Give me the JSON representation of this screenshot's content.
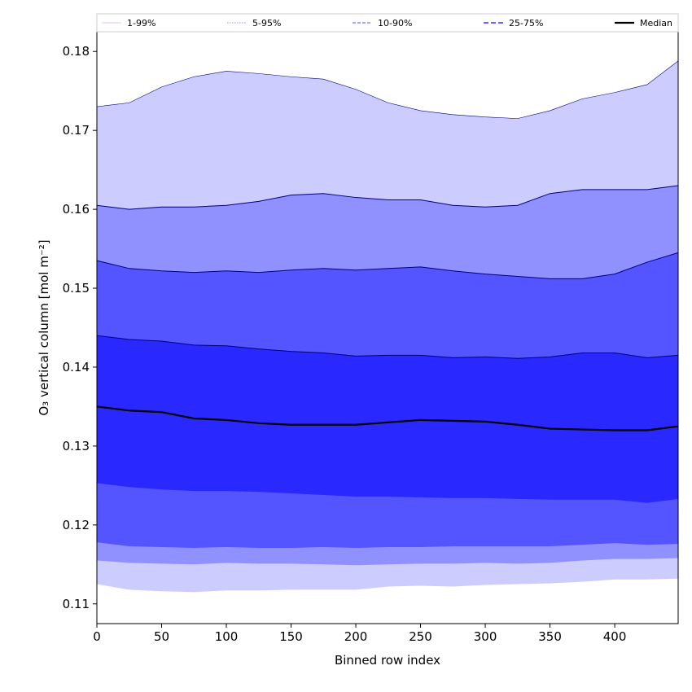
{
  "chart_data": {
    "type": "area",
    "title": "",
    "xlabel": "Binned row index",
    "ylabel": "O₃ vertical column [mol m⁻²]",
    "xlim": [
      0,
      449
    ],
    "ylim": [
      0.1075,
      0.1825
    ],
    "xticks": [
      0,
      50,
      100,
      150,
      200,
      250,
      300,
      350,
      400
    ],
    "yticks": [
      0.11,
      0.12,
      0.13,
      0.14,
      0.15,
      0.16,
      0.17,
      0.18
    ],
    "ytick_labels": [
      "0.11",
      "0.12",
      "0.13",
      "0.14",
      "0.15",
      "0.16",
      "0.17",
      "0.18"
    ],
    "grid": false,
    "legend_position": "top",
    "colors": {
      "band_1_99": "#ccccff",
      "band_5_95": "#9090ff",
      "band_10_90": "#5555ff",
      "band_25_75": "#2828ff",
      "median": "#000000",
      "upper_edge": "#000080"
    },
    "x": [
      0,
      25,
      50,
      75,
      100,
      125,
      150,
      175,
      200,
      225,
      250,
      275,
      300,
      325,
      350,
      375,
      400,
      425,
      449
    ],
    "bands": [
      {
        "name": "1-99%",
        "lower": [
          0.1125,
          0.1118,
          0.1116,
          0.1115,
          0.1117,
          0.1117,
          0.1118,
          0.1118,
          0.1118,
          0.1122,
          0.1123,
          0.1122,
          0.1124,
          0.1125,
          0.1126,
          0.1128,
          0.1131,
          0.1131,
          0.1132
        ],
        "upper": [
          0.173,
          0.1735,
          0.1755,
          0.1768,
          0.1775,
          0.1772,
          0.1768,
          0.1765,
          0.1752,
          0.1735,
          0.1725,
          0.172,
          0.1717,
          0.1715,
          0.1725,
          0.174,
          0.1748,
          0.1758,
          0.1788
        ]
      },
      {
        "name": "5-95%",
        "lower": [
          0.1155,
          0.1152,
          0.1151,
          0.115,
          0.1152,
          0.1151,
          0.1151,
          0.115,
          0.1149,
          0.115,
          0.1151,
          0.1151,
          0.1152,
          0.1151,
          0.1152,
          0.1155,
          0.1157,
          0.1157,
          0.1158
        ],
        "upper": [
          0.1605,
          0.16,
          0.1603,
          0.1603,
          0.1605,
          0.161,
          0.1618,
          0.162,
          0.1615,
          0.1612,
          0.1612,
          0.1605,
          0.1603,
          0.1605,
          0.162,
          0.1625,
          0.1625,
          0.1625,
          0.163
        ]
      },
      {
        "name": "10-90%",
        "lower": [
          0.1178,
          0.1173,
          0.1172,
          0.1171,
          0.1172,
          0.1171,
          0.1171,
          0.1172,
          0.1171,
          0.1172,
          0.1172,
          0.1173,
          0.1173,
          0.1173,
          0.1173,
          0.1175,
          0.1177,
          0.1175,
          0.1176
        ],
        "upper": [
          0.1535,
          0.1525,
          0.1522,
          0.152,
          0.1522,
          0.152,
          0.1523,
          0.1525,
          0.1523,
          0.1525,
          0.1527,
          0.1522,
          0.1518,
          0.1515,
          0.1512,
          0.1512,
          0.1518,
          0.1533,
          0.1545
        ]
      },
      {
        "name": "25-75%",
        "lower": [
          0.1253,
          0.1248,
          0.1245,
          0.1243,
          0.1243,
          0.1242,
          0.124,
          0.1238,
          0.1236,
          0.1236,
          0.1235,
          0.1234,
          0.1234,
          0.1233,
          0.1232,
          0.1232,
          0.1232,
          0.1228,
          0.1233
        ],
        "upper": [
          0.144,
          0.1435,
          0.1433,
          0.1428,
          0.1427,
          0.1423,
          0.142,
          0.1418,
          0.1414,
          0.1415,
          0.1415,
          0.1412,
          0.1413,
          0.1411,
          0.1413,
          0.1418,
          0.1418,
          0.1412,
          0.1415
        ]
      }
    ],
    "median": {
      "name": "Median",
      "y": [
        0.135,
        0.1345,
        0.1343,
        0.1335,
        0.1333,
        0.1329,
        0.1327,
        0.1327,
        0.1327,
        0.133,
        0.1333,
        0.1332,
        0.1331,
        0.1327,
        0.1322,
        0.1321,
        0.132,
        0.132,
        0.1325
      ]
    },
    "legend": [
      {
        "label": "1-99%",
        "style": "band_1_99"
      },
      {
        "label": "5-95%",
        "style": "band_5_95"
      },
      {
        "label": "10-90%",
        "style": "band_10_90"
      },
      {
        "label": "25-75%",
        "style": "band_25_75"
      },
      {
        "label": "Median",
        "style": "median"
      }
    ]
  }
}
